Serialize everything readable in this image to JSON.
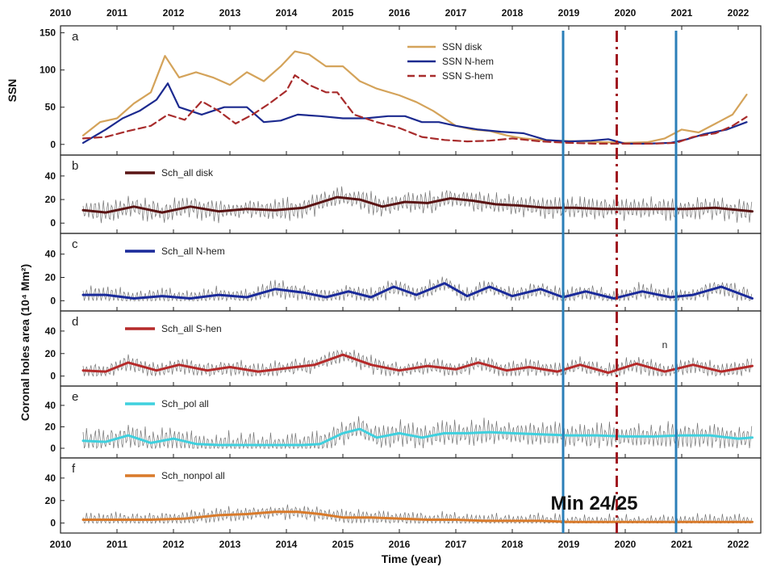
{
  "chart_data": {
    "type": "line",
    "x_axis": {
      "label": "Time (year)",
      "range": [
        2010,
        2022.4
      ],
      "ticks": [
        "2010",
        "2011",
        "2012",
        "2013",
        "2014",
        "2015",
        "2016",
        "2017",
        "2018",
        "2019",
        "2020",
        "2021",
        "2022"
      ]
    },
    "shared_ylabel": "Coronal holes area (10⁴ Mm²)",
    "colors": {
      "axes": "#222222",
      "noise": "#444444",
      "cycle_lines": "#2b7fb8",
      "minimum_line": "#a01820"
    },
    "vertical_markers": [
      {
        "x": 2018.9,
        "style": "solid",
        "color": "#2b7fb8"
      },
      {
        "x": 2019.85,
        "style": "dash-dot",
        "color": "#a01820"
      },
      {
        "x": 2020.9,
        "style": "solid",
        "color": "#2b7fb8"
      }
    ],
    "annotations": [
      {
        "text": "Min 24/25",
        "x": 2019.45,
        "y": 12,
        "panel": "f"
      },
      {
        "text": "n",
        "x": 2020.7,
        "y": 25,
        "panel": "d"
      }
    ],
    "panels": [
      {
        "letter": "a",
        "ylabel": "SSN",
        "ylim": [
          -10,
          155
        ],
        "yticks": [
          "0",
          "50",
          "100",
          "150"
        ],
        "legend_position": "top-right",
        "series": [
          {
            "name": "SSN disk",
            "color": "#d4a35a",
            "dash": "solid",
            "x": [
              2010.4,
              2010.7,
              2011.0,
              2011.3,
              2011.6,
              2011.85,
              2012.1,
              2012.4,
              2012.7,
              2013.0,
              2013.3,
              2013.6,
              2013.9,
              2014.15,
              2014.4,
              2014.7,
              2015.0,
              2015.3,
              2015.6,
              2016.0,
              2016.3,
              2016.6,
              2017.0,
              2017.3,
              2017.6,
              2017.9,
              2018.2,
              2018.5,
              2018.8,
              2019.2,
              2019.6,
              2020.0,
              2020.4,
              2020.7,
              2021.0,
              2021.3,
              2021.6,
              2021.9,
              2022.15
            ],
            "values": [
              12,
              30,
              35,
              55,
              70,
              119,
              90,
              97,
              90,
              80,
              97,
              85,
              105,
              125,
              121,
              105,
              105,
              85,
              75,
              66,
              57,
              45,
              25,
              20,
              18,
              12,
              8,
              6,
              5,
              4,
              3,
              2,
              3,
              8,
              20,
              16,
              28,
              40,
              67
            ]
          },
          {
            "name": "SSN N-hem",
            "color": "#1c2a8f",
            "dash": "solid",
            "x": [
              2010.4,
              2010.8,
              2011.1,
              2011.4,
              2011.7,
              2011.9,
              2012.1,
              2012.5,
              2012.9,
              2013.3,
              2013.6,
              2013.9,
              2014.2,
              2014.6,
              2015.0,
              2015.4,
              2015.8,
              2016.1,
              2016.4,
              2016.7,
              2017.0,
              2017.4,
              2017.8,
              2018.2,
              2018.6,
              2019.0,
              2019.4,
              2019.7,
              2020.0,
              2020.4,
              2020.8,
              2021.1,
              2021.4,
              2021.8,
              2022.15
            ],
            "values": [
              2,
              20,
              35,
              45,
              60,
              82,
              50,
              40,
              50,
              50,
              30,
              32,
              40,
              38,
              35,
              35,
              38,
              38,
              30,
              30,
              25,
              20,
              17,
              15,
              6,
              4,
              5,
              7,
              1,
              1,
              2,
              7,
              14,
              20,
              30
            ]
          },
          {
            "name": "SSN S-hem",
            "color": "#a82c2c",
            "dash": "dash",
            "x": [
              2010.4,
              2010.8,
              2011.2,
              2011.6,
              2011.9,
              2012.2,
              2012.5,
              2012.8,
              2013.1,
              2013.4,
              2013.7,
              2014.0,
              2014.15,
              2014.4,
              2014.7,
              2014.9,
              2015.2,
              2015.6,
              2016.0,
              2016.4,
              2016.8,
              2017.2,
              2017.6,
              2018.0,
              2018.5,
              2019.0,
              2019.5,
              2020.0,
              2020.5,
              2020.9,
              2021.2,
              2021.6,
              2021.9,
              2022.15
            ],
            "values": [
              8,
              10,
              18,
              25,
              40,
              33,
              58,
              45,
              28,
              40,
              55,
              72,
              93,
              80,
              70,
              70,
              40,
              30,
              22,
              10,
              6,
              4,
              5,
              8,
              4,
              2,
              1,
              1,
              1,
              2,
              10,
              15,
              25,
              37
            ]
          }
        ]
      },
      {
        "letter": "b",
        "ylim": [
          -6,
          55
        ],
        "yticks": [
          "0",
          "20",
          "40"
        ],
        "legend_position": "top-left",
        "noise": {
          "amplitude": 11,
          "seed": 3
        },
        "series": [
          {
            "name": "Sch_all disk",
            "color": "#5a1414",
            "dash": "solid",
            "x": [
              2010.4,
              2010.8,
              2011.3,
              2011.8,
              2012.3,
              2012.8,
              2013.3,
              2013.8,
              2014.3,
              2014.9,
              2015.3,
              2015.7,
              2016.1,
              2016.5,
              2016.9,
              2017.3,
              2017.7,
              2018.1,
              2018.6,
              2019.1,
              2019.6,
              2020.1,
              2020.6,
              2021.1,
              2021.6,
              2022.25
            ],
            "values": [
              11,
              9,
              14,
              9,
              14,
              10,
              12,
              11,
              13,
              22,
              20,
              14,
              18,
              17,
              21,
              19,
              16,
              15,
              13,
              13,
              12,
              12,
              12,
              12,
              13,
              10
            ]
          }
        ]
      },
      {
        "letter": "c",
        "ylim": [
          -6,
          55
        ],
        "yticks": [
          "0",
          "20",
          "40"
        ],
        "legend_position": "top-left",
        "noise": {
          "amplitude": 9,
          "seed": 7
        },
        "series": [
          {
            "name": "Sch_all N-hem",
            "color": "#1a2a9a",
            "dash": "solid",
            "x": [
              2010.4,
              2010.8,
              2011.3,
              2011.8,
              2012.3,
              2012.8,
              2013.3,
              2013.8,
              2014.3,
              2014.7,
              2015.1,
              2015.5,
              2015.9,
              2016.3,
              2016.8,
              2017.2,
              2017.6,
              2018.0,
              2018.5,
              2018.9,
              2019.3,
              2019.8,
              2020.3,
              2020.8,
              2021.2,
              2021.7,
              2022.25
            ],
            "values": [
              5,
              5,
              2,
              4,
              2,
              5,
              3,
              10,
              7,
              3,
              8,
              3,
              12,
              5,
              15,
              4,
              12,
              4,
              10,
              3,
              8,
              2,
              8,
              3,
              5,
              12,
              2
            ]
          }
        ]
      },
      {
        "letter": "d",
        "ylim": [
          -6,
          55
        ],
        "yticks": [
          "0",
          "20",
          "40"
        ],
        "legend_position": "top-left",
        "noise": {
          "amplitude": 9,
          "seed": 11
        },
        "series": [
          {
            "name": "Sch_all S-hen",
            "color": "#b52a2a",
            "dash": "solid",
            "x": [
              2010.4,
              2010.8,
              2011.2,
              2011.7,
              2012.1,
              2012.6,
              2013.0,
              2013.5,
              2014.0,
              2014.5,
              2015.0,
              2015.5,
              2016.0,
              2016.5,
              2017.0,
              2017.4,
              2017.9,
              2018.3,
              2018.8,
              2019.2,
              2019.7,
              2020.2,
              2020.7,
              2021.2,
              2021.7,
              2022.25
            ],
            "values": [
              5,
              4,
              12,
              5,
              10,
              5,
              8,
              4,
              7,
              10,
              19,
              10,
              5,
              9,
              6,
              12,
              5,
              8,
              4,
              10,
              3,
              11,
              4,
              10,
              4,
              9
            ]
          }
        ]
      },
      {
        "letter": "e",
        "ylim": [
          -6,
          55
        ],
        "yticks": [
          "0",
          "20",
          "40"
        ],
        "legend_position": "top-left",
        "noise": {
          "amplitude": 14,
          "seed": 19
        },
        "series": [
          {
            "name": "Sch_pol all",
            "color": "#3fd0de",
            "dash": "solid",
            "x": [
              2010.4,
              2010.8,
              2011.2,
              2011.6,
              2012.0,
              2012.4,
              2012.8,
              2013.3,
              2013.8,
              2014.3,
              2014.6,
              2015.0,
              2015.3,
              2015.6,
              2016.0,
              2016.4,
              2016.8,
              2017.2,
              2017.6,
              2018.0,
              2018.5,
              2019.0,
              2019.5,
              2020.0,
              2020.5,
              2021.0,
              2021.5,
              2022.0,
              2022.25
            ],
            "values": [
              7,
              6,
              12,
              5,
              9,
              4,
              3,
              3,
              3,
              3,
              4,
              14,
              18,
              10,
              14,
              10,
              14,
              14,
              15,
              14,
              13,
              12,
              12,
              11,
              11,
              12,
              12,
              9,
              10
            ]
          }
        ]
      },
      {
        "letter": "f",
        "ylim": [
          -6,
          55
        ],
        "yticks": [
          "0",
          "20",
          "40"
        ],
        "legend_position": "top-left",
        "noise": {
          "amplitude": 8,
          "seed": 23
        },
        "series": [
          {
            "name": "Sch_nonpol all",
            "color": "#d97a2a",
            "dash": "solid",
            "x": [
              2010.4,
              2011.0,
              2011.6,
              2012.2,
              2012.8,
              2013.3,
              2013.8,
              2014.2,
              2014.6,
              2015.0,
              2015.5,
              2016.0,
              2016.5,
              2017.0,
              2017.5,
              2018.0,
              2018.5,
              2019.0,
              2019.5,
              2020.0,
              2020.5,
              2021.0,
              2021.5,
              2022.25
            ],
            "values": [
              3,
              3,
              3,
              4,
              7,
              8,
              10,
              10,
              8,
              5,
              5,
              4,
              3,
              3,
              2,
              2,
              2,
              1,
              1,
              1,
              1,
              1,
              1,
              1
            ]
          }
        ]
      }
    ]
  }
}
